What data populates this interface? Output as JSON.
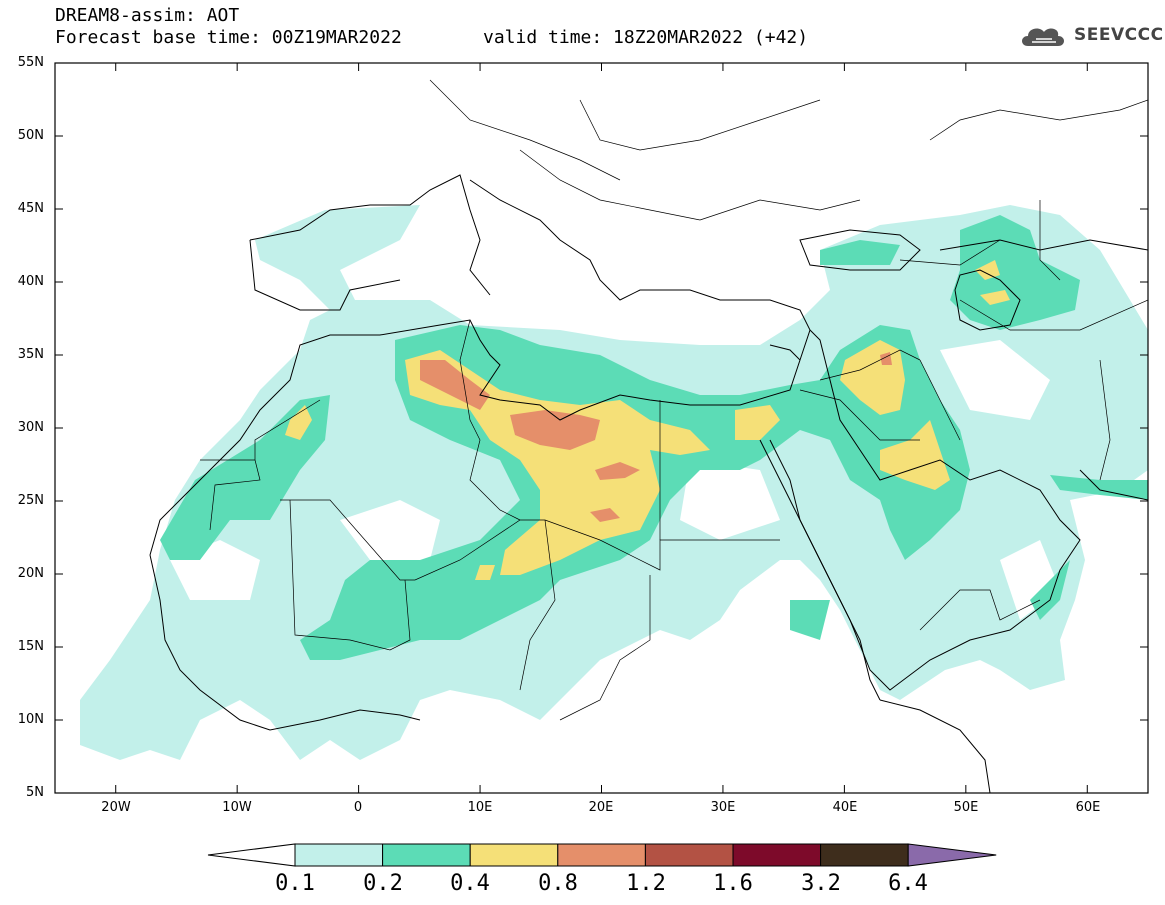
{
  "header": {
    "title": "DREAM8-assim: AOT",
    "base_time": "Forecast base time: 00Z19MAR2022",
    "valid_time": "valid time: 18Z20MAR2022 (+42)"
  },
  "logo": {
    "text": "SEEVCCC",
    "icon": "cloud-icon"
  },
  "map": {
    "variable": "AOT",
    "lon_range": [
      -25,
      65
    ],
    "lat_range": [
      5,
      55
    ],
    "lat_labels": [
      "55N",
      "50N",
      "45N",
      "40N",
      "35N",
      "30N",
      "25N",
      "20N",
      "15N",
      "10N",
      "5N"
    ],
    "lon_labels": [
      "20W",
      "10W",
      "0",
      "10E",
      "20E",
      "30E",
      "40E",
      "50E",
      "60E"
    ]
  },
  "legend": {
    "thresholds": [
      "0.1",
      "0.2",
      "0.4",
      "0.8",
      "1.2",
      "1.6",
      "3.2",
      "6.4"
    ],
    "colors": [
      "#c2f0ea",
      "#5cdcb6",
      "#f5e078",
      "#e58f6a",
      "#b35244",
      "#7d0a2a",
      "#3e2d1c",
      "#8a6aaa"
    ]
  }
}
